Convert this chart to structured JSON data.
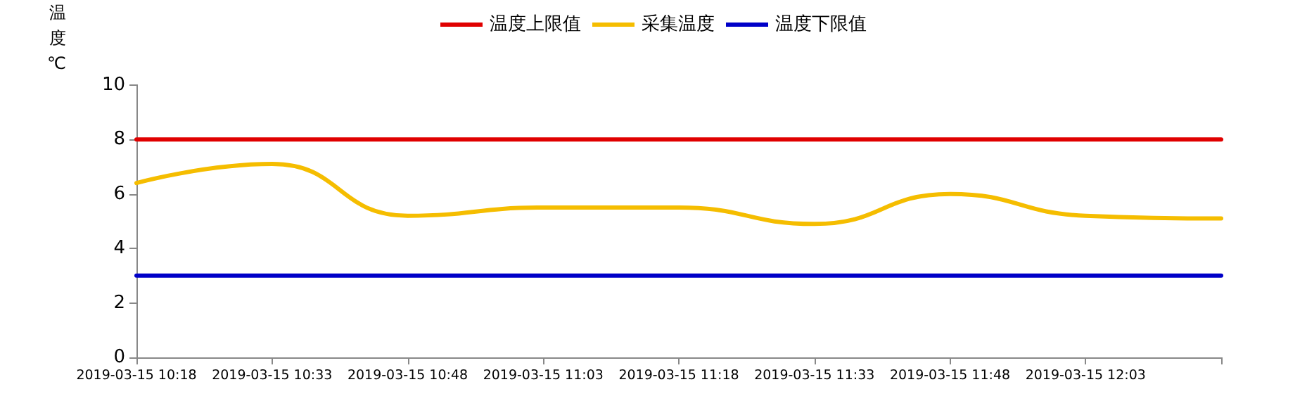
{
  "chart_data": {
    "type": "line",
    "ylabel": "温度℃",
    "categories": [
      "2019-03-15 10:18",
      "2019-03-15 10:33",
      "2019-03-15 10:48",
      "2019-03-15 11:03",
      "2019-03-15 11:18",
      "2019-03-15 11:33",
      "2019-03-15 11:48",
      "2019-03-15 12:03",
      null
    ],
    "series": [
      {
        "name": "温度上限值",
        "color": "#e00000",
        "values": [
          8,
          8,
          8,
          8,
          8,
          8,
          8,
          8,
          8
        ]
      },
      {
        "name": "采集温度",
        "color": "#f5bd00",
        "values": [
          6.4,
          7.1,
          5.2,
          5.5,
          5.5,
          4.9,
          6.0,
          5.2,
          5.1
        ]
      },
      {
        "name": "温度下限值",
        "color": "#0000c8",
        "values": [
          3,
          3,
          3,
          3,
          3,
          3,
          3,
          3,
          3
        ]
      }
    ],
    "ylim": [
      0,
      10
    ],
    "yticks": [
      0,
      2,
      4,
      6,
      8,
      10
    ],
    "grid": false,
    "legend": "top",
    "marker": "none",
    "line_style": "solid"
  }
}
